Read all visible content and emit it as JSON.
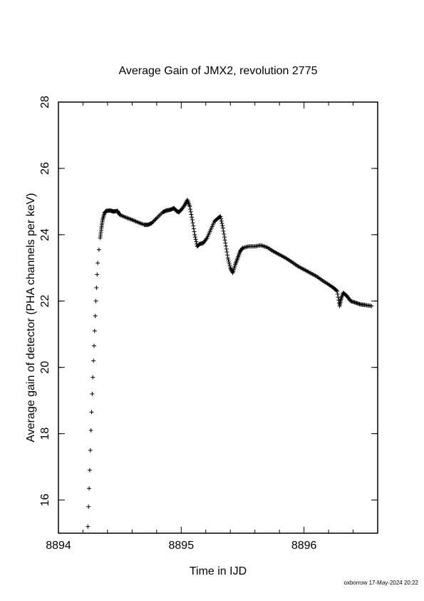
{
  "chart_data": {
    "type": "scatter",
    "title": "Average Gain of JMX2, revolution 2775",
    "xlabel": "Time in IJD",
    "ylabel": "Average gain of detector (PHA channels per keV)",
    "xlim": [
      8894,
      8896.6
    ],
    "ylim": [
      15,
      28
    ],
    "xticks": [
      8894,
      8895,
      8896
    ],
    "yticks": [
      16,
      18,
      20,
      22,
      24,
      26,
      28
    ],
    "grid": false,
    "marker": "plus",
    "series": [
      {
        "points": [
          [
            8894.24,
            15.2
          ],
          [
            8894.245,
            15.8
          ],
          [
            8894.25,
            16.35
          ],
          [
            8894.255,
            16.9
          ],
          [
            8894.26,
            17.5
          ],
          [
            8894.265,
            18.1
          ],
          [
            8894.27,
            18.65
          ],
          [
            8894.275,
            19.2
          ],
          [
            8894.28,
            19.7
          ],
          [
            8894.285,
            20.2
          ],
          [
            8894.29,
            20.65
          ],
          [
            8894.295,
            21.1
          ],
          [
            8894.3,
            21.55
          ],
          [
            8894.305,
            22.0
          ],
          [
            8894.31,
            22.4
          ],
          [
            8894.315,
            22.8
          ],
          [
            8894.32,
            23.15
          ],
          [
            8894.33,
            23.55
          ],
          [
            8894.34,
            23.9
          ],
          [
            8894.35,
            24.2
          ],
          [
            8894.36,
            24.45
          ],
          [
            8894.375,
            24.65
          ],
          [
            8894.39,
            24.72
          ],
          [
            8894.42,
            24.73
          ],
          [
            8894.45,
            24.7
          ],
          [
            8894.48,
            24.72
          ],
          [
            8894.5,
            24.6
          ],
          [
            8894.55,
            24.52
          ],
          [
            8894.6,
            24.45
          ],
          [
            8894.65,
            24.37
          ],
          [
            8894.7,
            24.3
          ],
          [
            8894.73,
            24.3
          ],
          [
            8894.76,
            24.35
          ],
          [
            8894.8,
            24.5
          ],
          [
            8894.85,
            24.68
          ],
          [
            8894.88,
            24.73
          ],
          [
            8894.91,
            24.75
          ],
          [
            8894.94,
            24.8
          ],
          [
            8894.96,
            24.72
          ],
          [
            8894.98,
            24.68
          ],
          [
            8895.0,
            24.75
          ],
          [
            8895.03,
            24.9
          ],
          [
            8895.05,
            25.05
          ],
          [
            8895.07,
            24.85
          ],
          [
            8895.09,
            24.45
          ],
          [
            8895.11,
            24.0
          ],
          [
            8895.13,
            23.65
          ],
          [
            8895.15,
            23.72
          ],
          [
            8895.18,
            23.75
          ],
          [
            8895.21,
            23.9
          ],
          [
            8895.24,
            24.15
          ],
          [
            8895.27,
            24.4
          ],
          [
            8895.3,
            24.5
          ],
          [
            8895.32,
            24.55
          ],
          [
            8895.34,
            24.2
          ],
          [
            8895.36,
            23.75
          ],
          [
            8895.38,
            23.3
          ],
          [
            8895.4,
            23.0
          ],
          [
            8895.42,
            22.85
          ],
          [
            8895.44,
            23.1
          ],
          [
            8895.46,
            23.3
          ],
          [
            8895.48,
            23.5
          ],
          [
            8895.5,
            23.6
          ],
          [
            8895.55,
            23.65
          ],
          [
            8895.6,
            23.65
          ],
          [
            8895.65,
            23.68
          ],
          [
            8895.7,
            23.62
          ],
          [
            8895.75,
            23.5
          ],
          [
            8895.8,
            23.4
          ],
          [
            8895.85,
            23.3
          ],
          [
            8895.9,
            23.18
          ],
          [
            8895.95,
            23.05
          ],
          [
            8896.0,
            22.95
          ],
          [
            8896.05,
            22.85
          ],
          [
            8896.1,
            22.75
          ],
          [
            8896.15,
            22.62
          ],
          [
            8896.2,
            22.5
          ],
          [
            8896.24,
            22.4
          ],
          [
            8896.27,
            22.3
          ],
          [
            8896.29,
            21.85
          ],
          [
            8896.3,
            22.05
          ],
          [
            8896.32,
            22.25
          ],
          [
            8896.35,
            22.15
          ],
          [
            8896.38,
            22.0
          ],
          [
            8896.42,
            21.95
          ],
          [
            8896.46,
            21.9
          ],
          [
            8896.5,
            21.88
          ],
          [
            8896.55,
            21.85
          ]
        ]
      }
    ]
  },
  "footer": {
    "stamp": "oxborrow 17-May-2024 20:22"
  }
}
